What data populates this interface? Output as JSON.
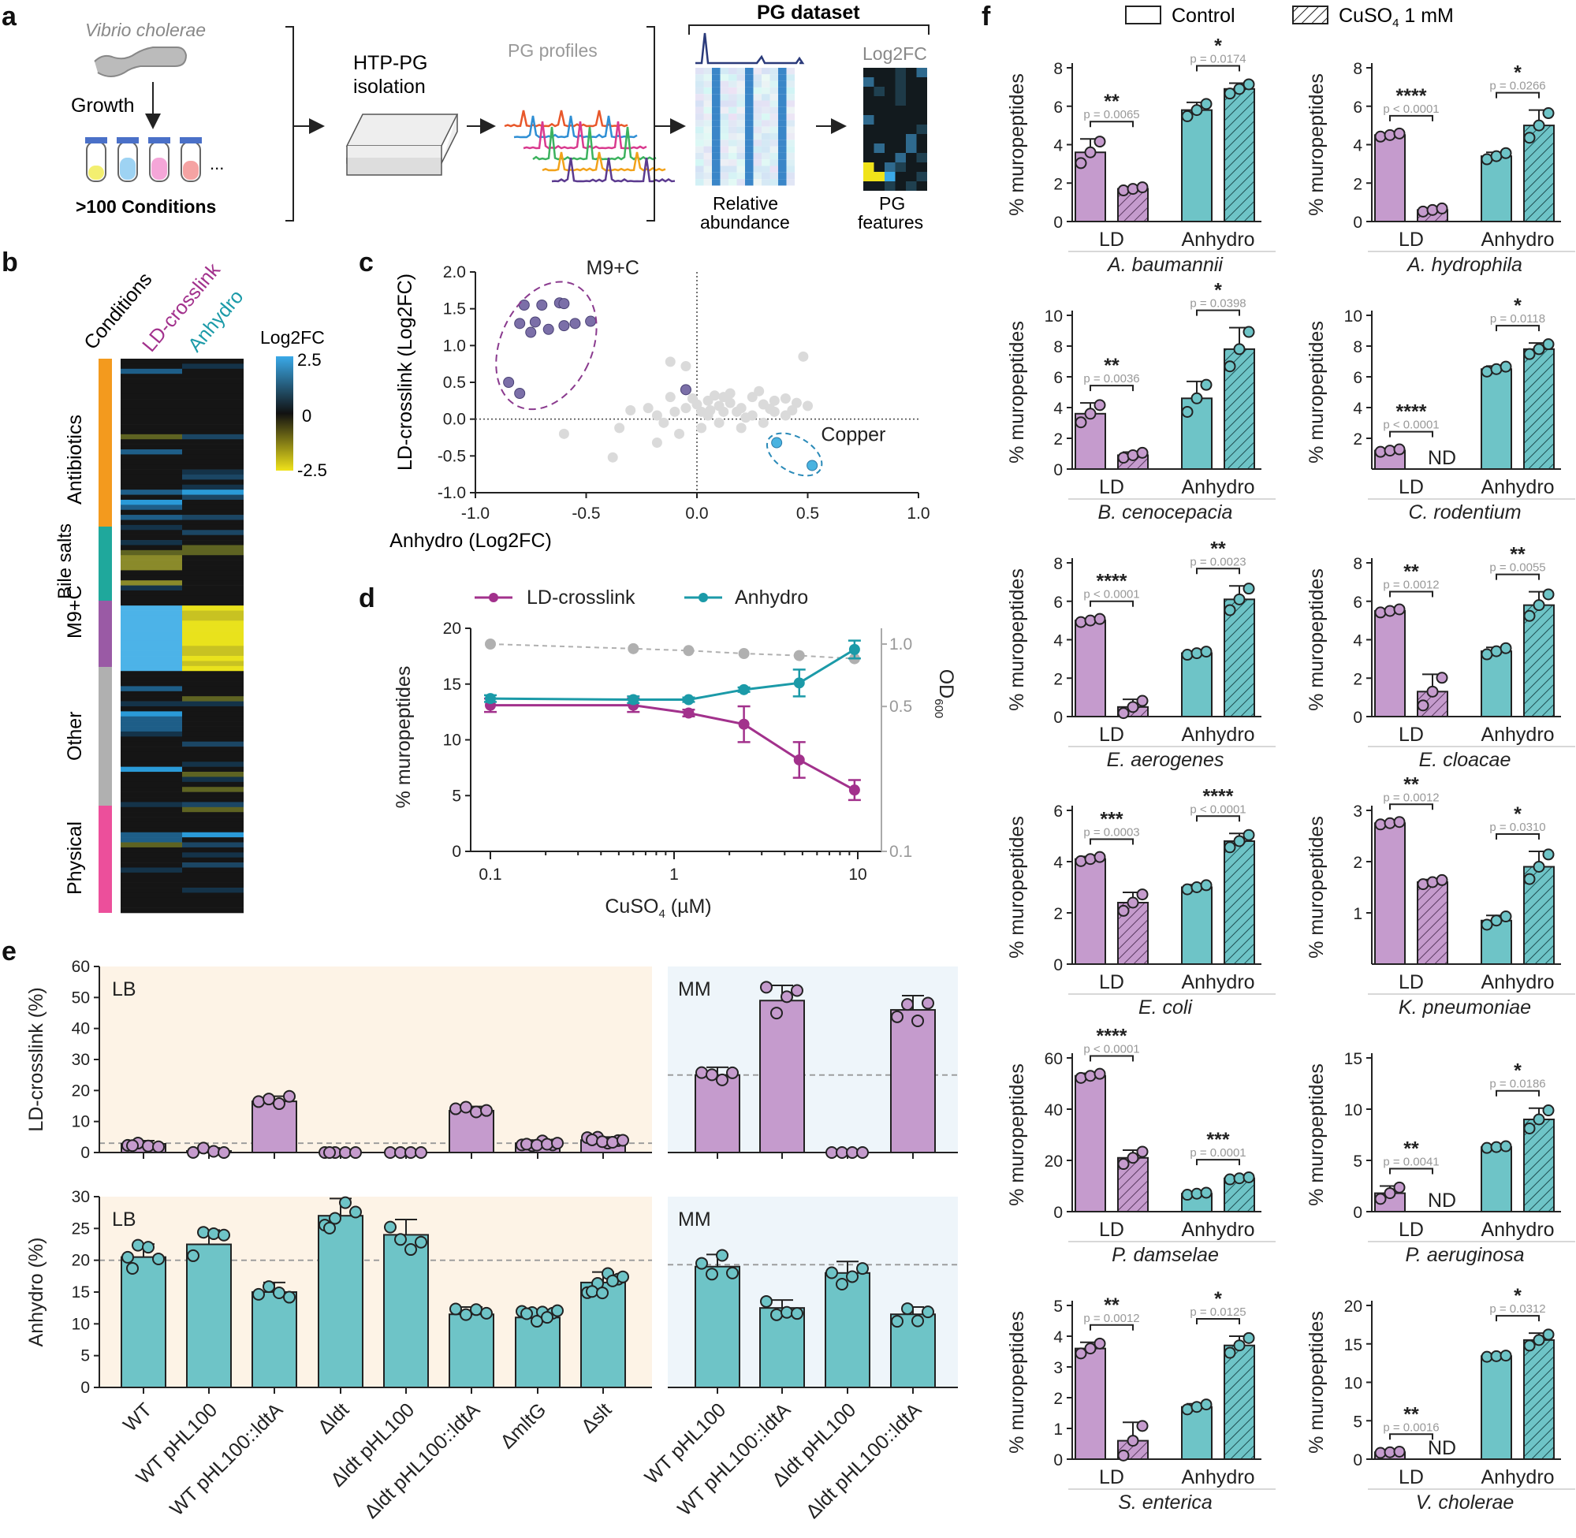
{
  "colors": {
    "ld": "#c59bcd",
    "ld_dark": "#8b5a95",
    "anh": "#6ec4c7",
    "anh_dark": "#1c8f97",
    "line_ld": "#a2318c",
    "line_anh": "#1b9aa8",
    "od": "#b0b0b0",
    "lb_bg": "#fdf3e6",
    "mm_bg": "#eef5fa",
    "m9": "#7b6fa8",
    "copper": "#4ab3e0"
  },
  "panel_labels": {
    "a": "a",
    "b": "b",
    "c": "c",
    "d": "d",
    "e": "e",
    "f": "f"
  },
  "panel_a": {
    "organism": "Vibrio cholerae",
    "growth": "Growth",
    "conditions": ">100 Conditions",
    "dots": "...",
    "htp_line1": "HTP-PG",
    "htp_line2": "isolation",
    "profiles": "PG profiles",
    "dataset": "PG dataset",
    "log2fc": "Log2FC",
    "rel_line1": "Relative",
    "rel_line2": "abundance",
    "feat_line1": "PG",
    "feat_line2": "features"
  },
  "panel_b": {
    "col_conditions": "Conditions",
    "col_ld": "LD-crosslink",
    "col_anh": "Anhydro",
    "legend_title": "Log2FC",
    "legend_ticks": [
      "2.5",
      "0",
      "-2.5"
    ],
    "groups": [
      "Antibiotics",
      "Bile salts",
      "M9+C",
      "Other",
      "Physical"
    ]
  },
  "panel_c": {
    "chart_data": {
      "type": "scatter",
      "xlabel": "Anhydro (Log2FC)",
      "ylabel": "LD-crosslink (Log2FC)",
      "xlim": [
        -1.0,
        1.0
      ],
      "ylim": [
        -1.0,
        2.0
      ],
      "xticks": [
        "-1.0",
        "-0.5",
        "0.0",
        "0.5",
        "1.0"
      ],
      "yticks": [
        "-1.0",
        "-0.5",
        "0.0",
        "0.5",
        "1.0",
        "1.5",
        "2.0"
      ],
      "annotations": [
        "M9+C",
        "Copper"
      ],
      "m9": [
        [
          -0.78,
          1.55
        ],
        [
          -0.7,
          1.55
        ],
        [
          -0.62,
          1.58
        ],
        [
          -0.6,
          1.57
        ],
        [
          -0.8,
          1.3
        ],
        [
          -0.73,
          1.32
        ],
        [
          -0.55,
          1.3
        ],
        [
          -0.48,
          1.33
        ],
        [
          -0.6,
          1.27
        ],
        [
          -0.75,
          1.18
        ],
        [
          -0.67,
          1.22
        ],
        [
          -0.85,
          0.5
        ],
        [
          -0.8,
          0.35
        ],
        [
          -0.05,
          0.4
        ]
      ],
      "copper": [
        [
          0.36,
          -0.32
        ],
        [
          0.52,
          -0.63
        ]
      ],
      "other": [
        [
          -0.12,
          0.78
        ],
        [
          -0.05,
          0.72
        ],
        [
          -0.3,
          0.12
        ],
        [
          -0.22,
          0.15
        ],
        [
          -0.18,
          0.05
        ],
        [
          -0.15,
          -0.05
        ],
        [
          -0.1,
          0.1
        ],
        [
          -0.05,
          0.15
        ],
        [
          0.0,
          0.2
        ],
        [
          0.05,
          0.25
        ],
        [
          0.1,
          0.18
        ],
        [
          0.15,
          0.22
        ],
        [
          0.2,
          0.15
        ],
        [
          0.25,
          0.3
        ],
        [
          0.3,
          0.2
        ],
        [
          0.35,
          0.25
        ],
        [
          0.4,
          0.28
        ],
        [
          0.45,
          0.22
        ],
        [
          0.5,
          0.18
        ],
        [
          0.48,
          0.85
        ],
        [
          0.05,
          0.05
        ],
        [
          0.1,
          -0.05
        ],
        [
          0.02,
          -0.12
        ],
        [
          -0.08,
          -0.2
        ],
        [
          -0.18,
          -0.32
        ],
        [
          -0.38,
          -0.52
        ],
        [
          -0.6,
          -0.2
        ],
        [
          -0.35,
          -0.12
        ],
        [
          0.2,
          -0.12
        ],
        [
          0.3,
          -0.05
        ],
        [
          0.25,
          0.05
        ],
        [
          0.15,
          0.35
        ],
        [
          0.12,
          0.3
        ],
        [
          -0.02,
          0.28
        ],
        [
          0.08,
          0.32
        ],
        [
          0.18,
          0.1
        ],
        [
          0.22,
          0.02
        ],
        [
          0.35,
          0.1
        ],
        [
          0.4,
          0.05
        ],
        [
          0.02,
          0.1
        ],
        [
          0.28,
          0.38
        ],
        [
          0.12,
          0.1
        ],
        [
          0.06,
          0.12
        ],
        [
          -0.12,
          0.3
        ],
        [
          0.33,
          0.14
        ],
        [
          0.43,
          0.12
        ]
      ]
    }
  },
  "panel_d": {
    "chart_data": {
      "type": "line",
      "legend": [
        "LD-crosslink",
        "Anhydro"
      ],
      "ylabel": "% muropeptides",
      "y2label": "OD",
      "y2sub": "600",
      "xlabel_main": "CuSO",
      "xlabel_sub": "4",
      "xlabel_unit": " (µM)",
      "xticks": [
        "0.1",
        "1",
        "10"
      ],
      "yticks": [
        "0",
        "5",
        "10",
        "15",
        "20"
      ],
      "y2ticks": [
        "0.1",
        "0.5",
        "1.0"
      ],
      "ylim": [
        0,
        20
      ],
      "x": [
        0.1,
        0.6,
        1.2,
        2.4,
        4.8,
        9.6
      ],
      "ld": [
        13.1,
        13.1,
        12.4,
        11.4,
        8.2,
        5.5
      ],
      "ld_err": [
        0.6,
        0.6,
        0.3,
        1.6,
        1.6,
        0.9
      ],
      "anh": [
        13.7,
        13.6,
        13.6,
        14.5,
        15.1,
        18.1
      ],
      "anh_err": [
        0.3,
        0.3,
        0.2,
        0.2,
        1.2,
        0.8
      ],
      "od": [
        1.0,
        0.95,
        0.93,
        0.9,
        0.88,
        0.85
      ]
    }
  },
  "panel_e": {
    "lb_label": "LB",
    "mm_label": "MM",
    "ylabel_top": "LD-crosslink (%)",
    "ylabel_bottom": "Anhydro (%)",
    "yticks_top": [
      "0",
      "10",
      "20",
      "30",
      "40",
      "50",
      "60"
    ],
    "yticks_bottom": [
      "0",
      "5",
      "10",
      "15",
      "20",
      "25",
      "30"
    ],
    "strains": [
      "WT",
      "WT pHL100",
      "WT pHL100::ldtA",
      "Δldt",
      "Δldt pHL100",
      "Δldt pHL100::ldtA",
      "ΔmltG",
      "Δslt",
      "WT pHL100",
      "WT pHL100::ldtA",
      "Δldt pHL100",
      "Δldt pHL100::ldtA"
    ],
    "chart_data": {
      "type": "bar",
      "ld": [
        2.8,
        0.5,
        16.5,
        0,
        0,
        13.5,
        3,
        4,
        25,
        49,
        0,
        46
      ],
      "anh": [
        20.5,
        22.5,
        15,
        27,
        24,
        11.5,
        11,
        16.5,
        19,
        12.5,
        18,
        11.5
      ]
    }
  },
  "panel_f": {
    "legend_control": "Control",
    "legend_cuso_main": "CuSO",
    "legend_cuso_sub": "4",
    "legend_cuso_rest": " 1 mM",
    "ylabel": "% muropeptides",
    "cat_ld": "LD",
    "cat_anh": "Anhydro",
    "nd": "ND",
    "species": [
      {
        "name": "A. baumannii",
        "yticks": [
          "0",
          "2",
          "4",
          "6",
          "8"
        ],
        "ymax": 8,
        "vals": [
          3.6,
          1.7,
          5.8,
          6.9
        ],
        "err": [
          0.7,
          0.1,
          0.4,
          0.3
        ],
        "nd": false,
        "s1": "**",
        "p1": "p = 0.0065",
        "s2": "*",
        "p2": "p = 0.0174"
      },
      {
        "name": "A. hydrophila",
        "yticks": [
          "0",
          "2",
          "4",
          "6",
          "8"
        ],
        "ymax": 8,
        "vals": [
          4.5,
          0.6,
          3.4,
          5.0
        ],
        "err": [
          0.1,
          0.1,
          0.2,
          0.8
        ],
        "nd": false,
        "s1": "****",
        "p1": "p < 0.0001",
        "s2": "*",
        "p2": "p = 0.0266"
      },
      {
        "name": "B. cenocepacia",
        "yticks": [
          "0",
          "2",
          "4",
          "6",
          "8",
          "10"
        ],
        "ymax": 10,
        "vals": [
          3.6,
          0.9,
          4.6,
          7.8
        ],
        "err": [
          0.7,
          0.2,
          1.1,
          1.4
        ],
        "nd": false,
        "s1": "**",
        "p1": "p = 0.0036",
        "s2": "*",
        "p2": "p = 0.0398"
      },
      {
        "name": "C. rodentium",
        "yticks": [
          "2",
          "4",
          "6",
          "8",
          "10"
        ],
        "ymax": 10,
        "vals": [
          1.2,
          0,
          6.5,
          7.8
        ],
        "err": [
          0.1,
          0,
          0.2,
          0.4
        ],
        "nd": true,
        "s1": "****",
        "p1": "p < 0.0001",
        "s2": "*",
        "p2": "p = 0.0118"
      },
      {
        "name": "E. aerogenes",
        "yticks": [
          "0",
          "2",
          "4",
          "6",
          "8"
        ],
        "ymax": 8,
        "vals": [
          5.0,
          0.5,
          3.3,
          6.1
        ],
        "err": [
          0.1,
          0.4,
          0.1,
          0.7
        ],
        "nd": false,
        "s1": "****",
        "p1": "p < 0.0001",
        "s2": "**",
        "p2": "p = 0.0023"
      },
      {
        "name": "E. cloacae",
        "yticks": [
          "0",
          "2",
          "4",
          "6",
          "8"
        ],
        "ymax": 8,
        "vals": [
          5.5,
          1.3,
          3.4,
          5.8
        ],
        "err": [
          0.1,
          0.9,
          0.2,
          0.7
        ],
        "nd": false,
        "s1": "**",
        "p1": "p = 0.0012",
        "s2": "**",
        "p2": "p = 0.0055"
      },
      {
        "name": "E. coli",
        "yticks": [
          "0",
          "2",
          "4",
          "6"
        ],
        "ymax": 6,
        "vals": [
          4.1,
          2.4,
          3.0,
          4.8
        ],
        "err": [
          0.1,
          0.4,
          0.1,
          0.3
        ],
        "nd": false,
        "s1": "***",
        "p1": "p = 0.0003",
        "s2": "****",
        "p2": "p < 0.0001"
      },
      {
        "name": "K. pneumoniae",
        "yticks": [
          "1",
          "2",
          "3"
        ],
        "ymax": 3,
        "vals": [
          2.75,
          1.6,
          0.85,
          1.9
        ],
        "err": [
          0.03,
          0.05,
          0.1,
          0.3
        ],
        "nd": false,
        "s1": "**",
        "p1": "p = 0.0012",
        "s2": "*",
        "p2": "p = 0.0310"
      },
      {
        "name": "P. damselae",
        "yticks": [
          "0",
          "20",
          "40",
          "60"
        ],
        "ymax": 60,
        "vals": [
          53,
          21,
          7,
          13
        ],
        "err": [
          1,
          3,
          0.5,
          0.5
        ],
        "nd": false,
        "s1": "****",
        "p1": "p < 0.0001",
        "s2": "***",
        "p2": "p = 0.0001"
      },
      {
        "name": "P. aeruginosa",
        "yticks": [
          "0",
          "5",
          "10",
          "15"
        ],
        "ymax": 15,
        "vals": [
          1.8,
          0,
          6.3,
          9.0
        ],
        "err": [
          0.7,
          0,
          0.1,
          1.1
        ],
        "nd": true,
        "s1": "**",
        "p1": "p = 0.0041",
        "s2": "*",
        "p2": "p = 0.0186"
      },
      {
        "name": "S. enterica",
        "yticks": [
          "0",
          "1",
          "2",
          "3",
          "4",
          "5"
        ],
        "ymax": 5,
        "vals": [
          3.6,
          0.6,
          1.7,
          3.7
        ],
        "err": [
          0.2,
          0.6,
          0.1,
          0.3
        ],
        "nd": false,
        "s1": "**",
        "p1": "p = 0.0012",
        "s2": "*",
        "p2": "p = 0.0125"
      },
      {
        "name": "V. cholerae",
        "yticks": [
          "0",
          "5",
          "10",
          "15",
          "20"
        ],
        "ymax": 20,
        "vals": [
          0.9,
          0,
          13.4,
          15.5
        ],
        "err": [
          0.1,
          0,
          0.1,
          0.9
        ],
        "nd": true,
        "s1": "**",
        "p1": "p = 0.0016",
        "s2": "*",
        "p2": "p = 0.0312"
      }
    ]
  }
}
